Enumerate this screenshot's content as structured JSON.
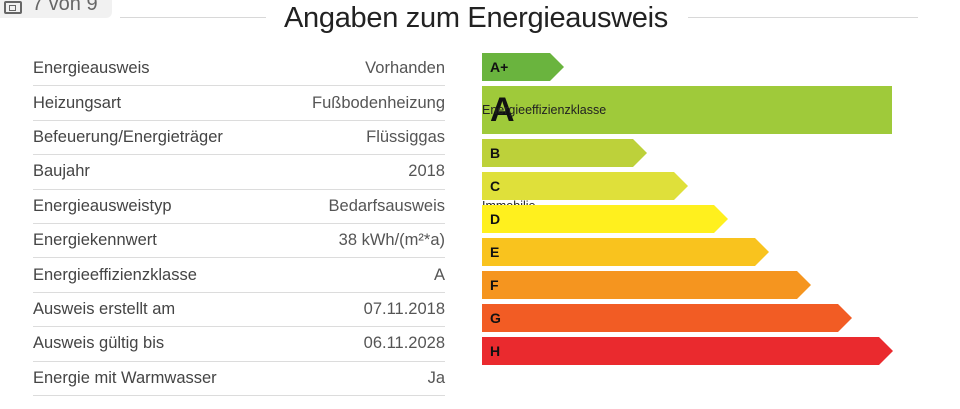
{
  "counter": {
    "text": "7 von 9",
    "icon": "gallery-icon"
  },
  "title": "Angaben zum Energieausweis",
  "rows": [
    {
      "label": "Energieausweis",
      "value": "Vorhanden"
    },
    {
      "label": "Heizungsart",
      "value": "Fußbodenheizung"
    },
    {
      "label": "Befeuerung/Energieträger",
      "value": "Flüssiggas"
    },
    {
      "label": "Baujahr",
      "value": "2018"
    },
    {
      "label": "Energieausweistyp",
      "value": "Bedarfsausweis"
    },
    {
      "label": "Energiekennwert",
      "value": "38 kWh/(m²*a)"
    },
    {
      "label": "Energieeffizienzklasse",
      "value": "A"
    },
    {
      "label": "Ausweis erstellt am",
      "value": "07.11.2018"
    },
    {
      "label": "Ausweis gültig bis",
      "value": "06.11.2028"
    },
    {
      "label": "Energie mit Warmwasser",
      "value": "Ja"
    }
  ],
  "scale": {
    "highlight_text": "Energieeffizienzklasse der Immobilie",
    "classes": [
      {
        "label": "A+",
        "color": "#6ab43e",
        "highlight": false
      },
      {
        "label": "A",
        "color": "#9fca3a",
        "highlight": true
      },
      {
        "label": "B",
        "color": "#bdd13a",
        "highlight": false
      },
      {
        "label": "C",
        "color": "#dfe03a",
        "highlight": false
      },
      {
        "label": "D",
        "color": "#fff01e",
        "highlight": false
      },
      {
        "label": "E",
        "color": "#f9c31e",
        "highlight": false
      },
      {
        "label": "F",
        "color": "#f5951f",
        "highlight": false
      },
      {
        "label": "G",
        "color": "#f25c24",
        "highlight": false
      },
      {
        "label": "H",
        "color": "#ea2a2e",
        "highlight": false
      }
    ]
  }
}
